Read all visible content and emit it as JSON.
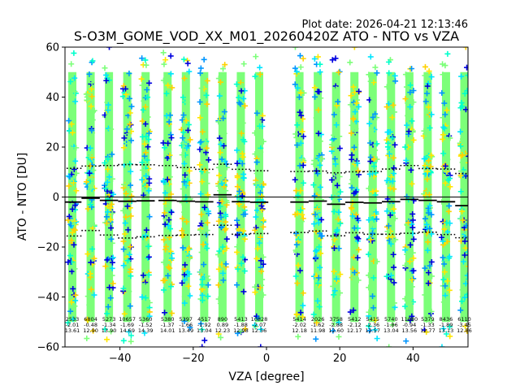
{
  "header": {
    "plot_date": "Plot date: 2026-04-21 12:13:46"
  },
  "chart_data": {
    "type": "scatter",
    "title": "S-O3M_GOME_VOD_XX_M01_20260420Z ATO - NTO vs VZA",
    "xlabel": "VZA [degree]",
    "ylabel": "ATO - NTO [DU]",
    "xlim": [
      -55,
      55
    ],
    "ylim": [
      -60,
      60
    ],
    "xticks": [
      -40,
      -20,
      0,
      20,
      40
    ],
    "yticks": [
      -60,
      -40,
      -20,
      0,
      20,
      40,
      60
    ],
    "xtick_labels": [
      "−40",
      "−20",
      "0",
      "20",
      "40"
    ],
    "ytick_labels": [
      "−60",
      "−40",
      "−20",
      "0",
      "20",
      "40",
      "60"
    ],
    "zero_line": 0,
    "bins": [
      {
        "vza": -53,
        "count": "2533",
        "mean": -2.01,
        "mean_label": "-2.01",
        "std_label": "13.61",
        "upper": 11.5,
        "lower": -15.6
      },
      {
        "vza": -48,
        "count": "6804",
        "mean": -0.48,
        "mean_label": "-0.48",
        "std_label": "12.90",
        "upper": 12.4,
        "lower": -13.4
      },
      {
        "vza": -43,
        "count": "5273",
        "mean": -1.34,
        "mean_label": "-1.34",
        "std_label": "13.90",
        "upper": 12.6,
        "lower": -15.2
      },
      {
        "vza": -38,
        "count": "10657",
        "mean": -1.69,
        "mean_label": "-1.69",
        "std_label": "14.69",
        "upper": 13.0,
        "lower": -16.4
      },
      {
        "vza": -33,
        "count": "5360",
        "mean": -1.52,
        "mean_label": "-1.52",
        "std_label": "14.39",
        "upper": 12.9,
        "lower": -15.9
      },
      {
        "vza": -27,
        "count": "5380",
        "mean": -1.37,
        "mean_label": "-1.37",
        "std_label": "14.01",
        "upper": 12.6,
        "lower": -15.4
      },
      {
        "vza": -22,
        "count": "5397",
        "mean": -1.66,
        "mean_label": "-1.66",
        "std_label": "13.49",
        "upper": 11.8,
        "lower": -15.2
      },
      {
        "vza": -17,
        "count": "4517",
        "mean": -1.92,
        "mean_label": "-1.92",
        "std_label": "13.04",
        "upper": 11.1,
        "lower": -15.0
      },
      {
        "vza": -12,
        "count": "890",
        "mean": 0.89,
        "mean_label": "0.89",
        "std_label": "12.23",
        "upper": 13.1,
        "lower": -11.3
      },
      {
        "vza": -7,
        "count": "5413",
        "mean": -1.88,
        "mean_label": "-1.88",
        "std_label": "12.98",
        "upper": 11.1,
        "lower": -14.9
      },
      {
        "vza": -2,
        "count": "10828",
        "mean": -2.07,
        "mean_label": "-2.07",
        "std_label": "12.56",
        "upper": 10.5,
        "lower": -14.6
      },
      {
        "vza": 9,
        "count": "5414",
        "mean": -2.02,
        "mean_label": "-2.02",
        "std_label": "12.18",
        "upper": 10.2,
        "lower": -14.2
      },
      {
        "vza": 14,
        "count": "2026",
        "mean": -1.62,
        "mean_label": "-1.62",
        "std_label": "11.98",
        "upper": 10.4,
        "lower": -13.6
      },
      {
        "vza": 19,
        "count": "3758",
        "mean": -2.88,
        "mean_label": "-2.88",
        "std_label": "12.60",
        "upper": 9.7,
        "lower": -15.5
      },
      {
        "vza": 24,
        "count": "5412",
        "mean": -2.12,
        "mean_label": "-2.12",
        "std_label": "12.17",
        "upper": 10.1,
        "lower": -14.3
      },
      {
        "vza": 29,
        "count": "5415",
        "mean": -2.36,
        "mean_label": "-2.36",
        "std_label": "12.57",
        "upper": 10.2,
        "lower": -14.9
      },
      {
        "vza": 34,
        "count": "5740",
        "mean": -1.86,
        "mean_label": "-1.86",
        "std_label": "13.04",
        "upper": 11.2,
        "lower": -14.9
      },
      {
        "vza": 39,
        "count": "11080",
        "mean": -0.94,
        "mean_label": "-0.94",
        "std_label": "13.56",
        "upper": 12.6,
        "lower": -14.5
      },
      {
        "vza": 44,
        "count": "5379",
        "mean": -1.33,
        "mean_label": "-1.33",
        "std_label": "12.77",
        "upper": 11.4,
        "lower": -14.1
      },
      {
        "vza": 49,
        "count": "8436",
        "mean": -1.89,
        "mean_label": "-1.89",
        "std_label": "13.13",
        "upper": 11.2,
        "lower": -15.0
      },
      {
        "vza": 54,
        "count": "6110",
        "mean": -3.45,
        "mean_label": "-3.45",
        "std_label": "12.86",
        "upper": 9.4,
        "lower": -16.3
      }
    ]
  }
}
